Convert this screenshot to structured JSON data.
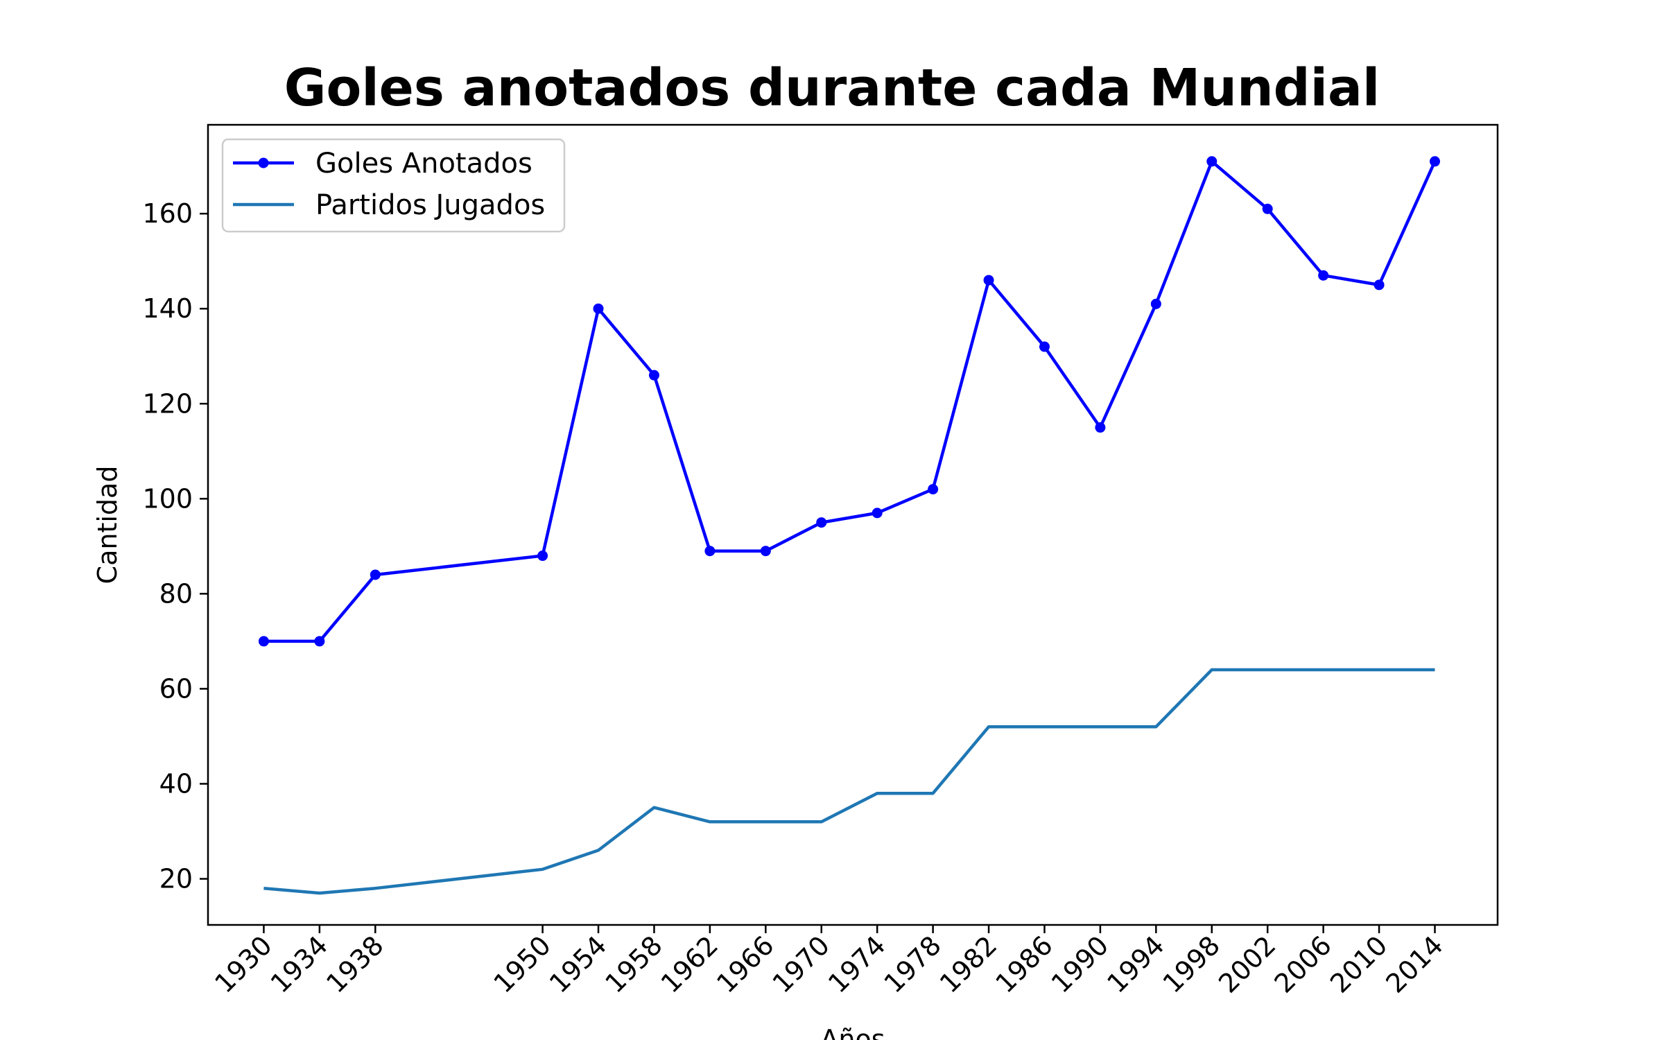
{
  "chart_data": {
    "type": "line",
    "title": "Goles anotados durante cada Mundial",
    "xlabel": "Años",
    "ylabel": "Cantidad",
    "x": [
      1930,
      1934,
      1938,
      1950,
      1954,
      1958,
      1962,
      1966,
      1970,
      1974,
      1978,
      1982,
      1986,
      1990,
      1994,
      1998,
      2002,
      2006,
      2010,
      2014
    ],
    "x_tick_labels": [
      "1930",
      "1934",
      "1938",
      "1950",
      "1954",
      "1958",
      "1962",
      "1966",
      "1970",
      "1974",
      "1978",
      "1982",
      "1986",
      "1990",
      "1994",
      "1998",
      "2002",
      "2006",
      "2010",
      "2014"
    ],
    "xlim": [
      1926,
      2018.5
    ],
    "ylim": [
      10.3,
      178.7
    ],
    "y_ticks": [
      20,
      40,
      60,
      80,
      100,
      120,
      140,
      160
    ],
    "y_tick_labels": [
      "20",
      "40",
      "60",
      "80",
      "100",
      "120",
      "140",
      "160"
    ],
    "legend_position": "upper-left",
    "grid": false,
    "series": [
      {
        "name": "Goles Anotados",
        "color": "#0000ff",
        "marker": "dot",
        "values": [
          70,
          70,
          84,
          88,
          140,
          126,
          89,
          89,
          95,
          97,
          102,
          146,
          132,
          115,
          141,
          171,
          161,
          147,
          145,
          171
        ]
      },
      {
        "name": "Partidos Jugados",
        "color": "#1f77b4",
        "marker": "none",
        "values": [
          18,
          17,
          18,
          22,
          26,
          35,
          32,
          32,
          32,
          38,
          38,
          52,
          52,
          52,
          52,
          64,
          64,
          64,
          64,
          64
        ]
      }
    ]
  }
}
